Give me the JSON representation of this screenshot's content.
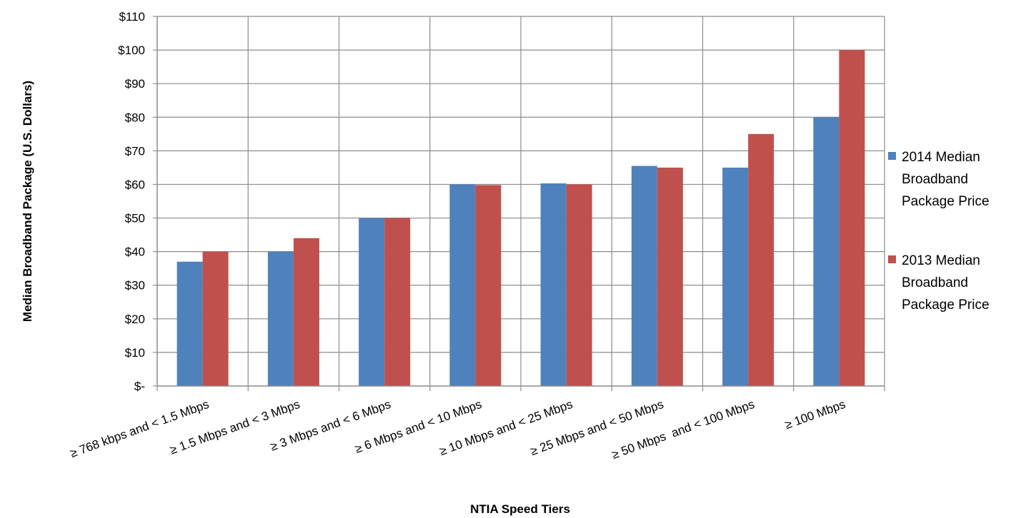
{
  "chart_data": {
    "type": "bar",
    "title": "",
    "xlabel": "NTIA Speed Tiers",
    "ylabel": "Median Broadband Package (U.S. Dollars)",
    "ylim": [
      0,
      110
    ],
    "ytick_step": 10,
    "ytick_labels": [
      "$-",
      "$10",
      "$20",
      "$30",
      "$40",
      "$50",
      "$60",
      "$70",
      "$80",
      "$90",
      "$100",
      "$110"
    ],
    "grid": true,
    "legend_position": "right",
    "categories": [
      "≥ 768 kbps and < 1.5 Mbps",
      "≥ 1.5 Mbps and < 3 Mbps",
      "≥ 3 Mbps and < 6 Mbps",
      "≥ 6 Mbps and < 10 Mbps",
      "≥ 10 Mbps and < 25 Mbps",
      "≥ 25 Mbps and < 50 Mbps",
      "≥ 50 Mbps  and < 100 Mbps",
      "≥ 100 Mbps"
    ],
    "series": [
      {
        "name": "2014 Median Broadband Package Price",
        "legend_lines": [
          "2014 Median",
          "Broadband",
          "Package Price"
        ],
        "color": "#4F81BD",
        "values": [
          37,
          40,
          50,
          60,
          60.3,
          65.5,
          65,
          80
        ]
      },
      {
        "name": "2013 Median Broadband Package Price",
        "legend_lines": [
          "2013 Median",
          "Broadband",
          "Package Price"
        ],
        "color": "#C0504D",
        "values": [
          40,
          44,
          50,
          59.8,
          60,
          65,
          75,
          100
        ]
      }
    ]
  }
}
